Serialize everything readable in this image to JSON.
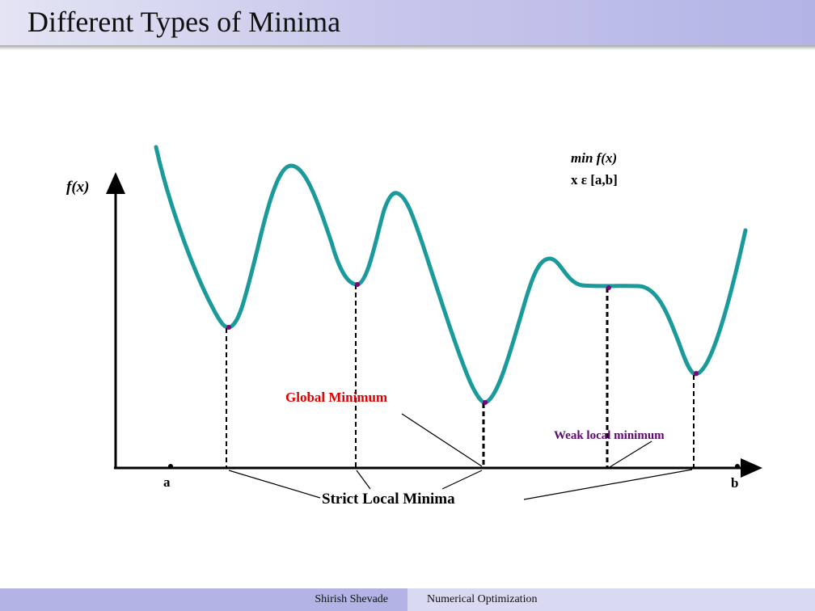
{
  "slide": {
    "title": "Different Types of Minima"
  },
  "diagram": {
    "y_axis_label": "f(x)",
    "problem_line1": "min  f(x)",
    "problem_line2": "x ε [a,b]",
    "endpoint_a": "a",
    "endpoint_b": "b",
    "global_minimum_label": "Global Minimum",
    "weak_local_label": "Weak local minimum",
    "strict_local_label": "Strict Local Minima",
    "colors": {
      "curve": "#1a9a9a",
      "min_point": "#800080",
      "global_label": "#e00000",
      "weak_label": "#5a0a6a",
      "text": "#000000"
    }
  },
  "footer": {
    "author": "Shirish Shevade",
    "talk": "Numerical Optimization"
  }
}
